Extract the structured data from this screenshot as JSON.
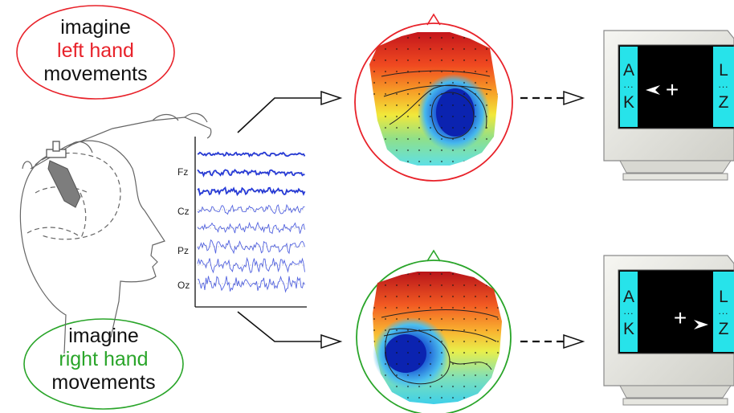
{
  "captions": {
    "top": {
      "line1": "imagine",
      "line2": "left hand",
      "line3": "movements"
    },
    "bottom": {
      "line1": "imagine",
      "line2": "right hand",
      "line3": "movements"
    }
  },
  "eeg": {
    "channels": [
      "Fz",
      "Cz",
      "Pz",
      "Oz"
    ]
  },
  "monitors": {
    "top": {
      "left_top": "A",
      "left_dots": "...",
      "left_bottom": "K",
      "right_top": "L",
      "right_dots": "...",
      "right_bottom": "Z",
      "cursor": "+"
    },
    "bottom": {
      "left_top": "A",
      "left_dots": "...",
      "left_bottom": "K",
      "right_top": "L",
      "right_dots": "...",
      "right_bottom": "Z",
      "cursor": "+"
    }
  },
  "colors": {
    "left_accent": "#e8222a",
    "right_accent": "#2aa52a",
    "eeg_trace": "#1a2fd6",
    "monitor_side_panel": "#27e3ea",
    "monitor_screen": "#000000"
  },
  "icons": [
    "head-sensor-icon",
    "arrow-icon",
    "scalp-map-icon",
    "monitor-icon",
    "cursor-arrow-icon"
  ]
}
